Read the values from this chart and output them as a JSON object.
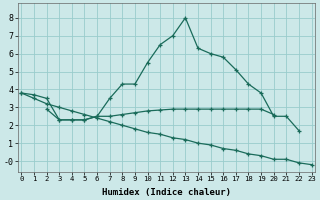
{
  "xlabel": "Humidex (Indice chaleur)",
  "bg_color": "#cce8e8",
  "grid_color": "#99cccc",
  "line_color": "#1a6b5a",
  "lines": [
    {
      "x": [
        0,
        1,
        2,
        3,
        4,
        5,
        6,
        7,
        8,
        9,
        10,
        11,
        12,
        13,
        14,
        15,
        16,
        17,
        18,
        19,
        20,
        21,
        22
      ],
      "y": [
        3.8,
        3.7,
        3.5,
        2.3,
        2.3,
        2.3,
        2.5,
        3.5,
        4.3,
        4.3,
        5.5,
        6.5,
        7.0,
        8.0,
        6.3,
        6.0,
        5.8,
        5.1,
        4.3,
        3.8,
        2.5,
        2.5,
        1.7
      ]
    },
    {
      "x": [
        2,
        3,
        4,
        5,
        6,
        7,
        8,
        9,
        10,
        11,
        12,
        13,
        14,
        15,
        16,
        17,
        18,
        19,
        20
      ],
      "y": [
        2.9,
        2.3,
        2.3,
        2.3,
        2.5,
        2.5,
        2.6,
        2.7,
        2.8,
        2.85,
        2.9,
        2.9,
        2.9,
        2.9,
        2.9,
        2.9,
        2.9,
        2.9,
        2.6
      ]
    },
    {
      "x": [
        0,
        1,
        2,
        3,
        4,
        5,
        6,
        7,
        8,
        9,
        10,
        11,
        12,
        13,
        14,
        15,
        16,
        17,
        18,
        19,
        20,
        21,
        22,
        23
      ],
      "y": [
        3.8,
        3.5,
        3.2,
        3.0,
        2.8,
        2.6,
        2.4,
        2.2,
        2.0,
        1.8,
        1.6,
        1.5,
        1.3,
        1.2,
        1.0,
        0.9,
        0.7,
        0.6,
        0.4,
        0.3,
        0.1,
        0.1,
        -0.1,
        -0.2
      ]
    }
  ],
  "ylim": [
    -0.6,
    8.8
  ],
  "xlim": [
    -0.3,
    23.3
  ],
  "yticks": [
    0,
    1,
    2,
    3,
    4,
    5,
    6,
    7,
    8
  ],
  "ytick_labels": [
    "-0",
    "1",
    "2",
    "3",
    "4",
    "5",
    "6",
    "7",
    "8"
  ],
  "xticks": [
    0,
    1,
    2,
    3,
    4,
    5,
    6,
    7,
    8,
    9,
    10,
    11,
    12,
    13,
    14,
    15,
    16,
    17,
    18,
    19,
    20,
    21,
    22,
    23
  ]
}
